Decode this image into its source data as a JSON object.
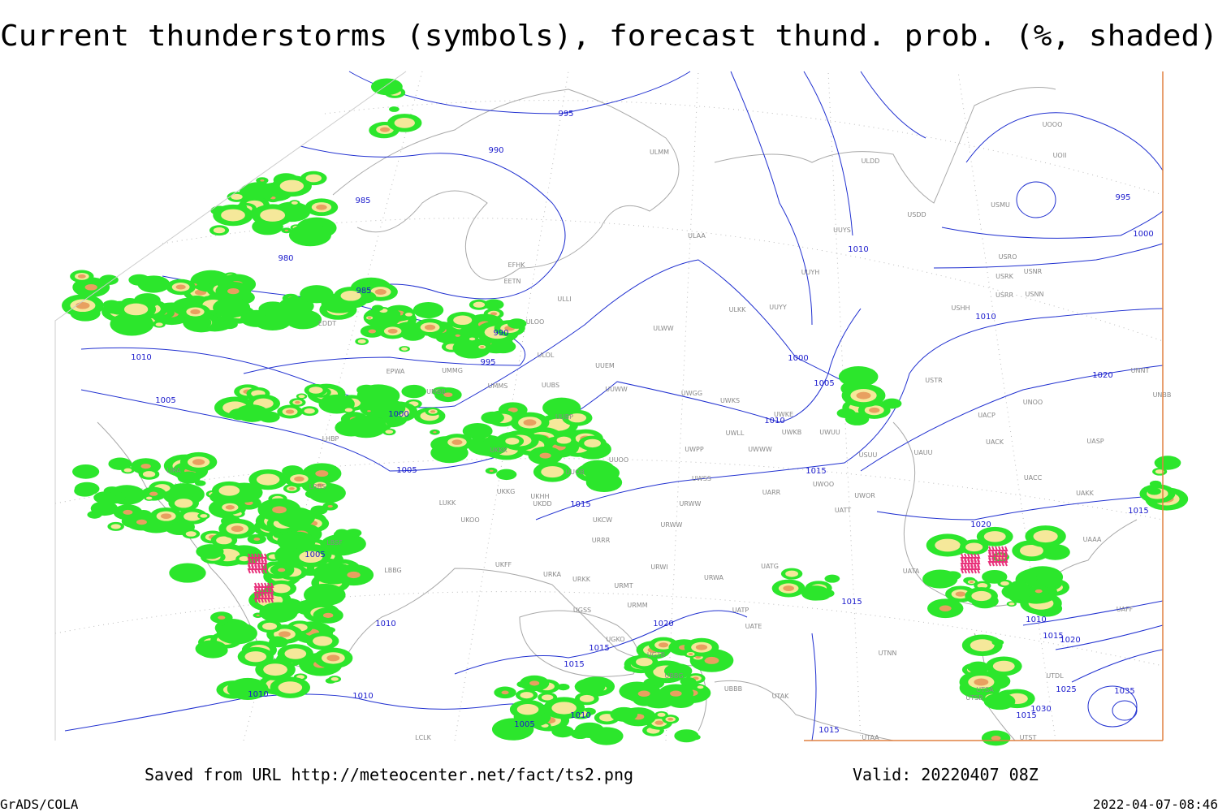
{
  "title": "Current thunderstorms (symbols), forecast thund. prob. (%, shaded)",
  "footer": {
    "source": "Saved from URL http://meteocenter.net/fact/ts2.png",
    "valid": "Valid: 20220407 08Z",
    "software": "GrADS/COLA",
    "timestamp": "2022-04-07-08:46"
  },
  "isobar_labels": [
    "995",
    "990",
    "985",
    "980",
    "985",
    "990",
    "995",
    "1010",
    "1005",
    "1000",
    "1005",
    "1015",
    "1005",
    "1010",
    "1010",
    "1010",
    "1015",
    "1015",
    "1020",
    "1010",
    "1005",
    "1010",
    "1000",
    "1005",
    "1010",
    "1015",
    "1020",
    "1020",
    "1015",
    "1000",
    "995",
    "1010",
    "1015",
    "1010",
    "1015",
    "1020",
    "1025",
    "1030",
    "1035",
    "1015",
    "1015"
  ],
  "stations": [
    "ULMM",
    "ULDD",
    "UOOO",
    "UOII",
    "USMU",
    "USDD",
    "ULAA",
    "UUYS",
    "USRO",
    "USRK",
    "USNR",
    "USRR",
    "USNN",
    "UUYH",
    "UUYY",
    "ULKK",
    "USHH",
    "EFHK",
    "EETN",
    "ULLI",
    "ULOO",
    "ULWW",
    "EDDT",
    "ULOL",
    "UUEM",
    "EPWA",
    "UMMG",
    "UMMS",
    "UUBS",
    "UUWW",
    "UWGG",
    "UWKS",
    "USTR",
    "UNNT",
    "UNBB",
    "UNOO",
    "UMBB",
    "UUBP",
    "UWKE",
    "UWKB",
    "UWUU",
    "UACP",
    "UACK",
    "UASP",
    "LHBP",
    "UKKK",
    "UWLL",
    "UWWW",
    "UWPP",
    "USUU",
    "UAUU",
    "UUOO",
    "LIRA",
    "UUOB",
    "UWSS",
    "UWOO",
    "UACC",
    "UAKK",
    "LRBS",
    "UKKG",
    "UKHH",
    "UAAA",
    "LUKK",
    "UKDD",
    "URWW",
    "UARR",
    "UWOR",
    "UATT",
    "UKOO",
    "UKCW",
    "URWW",
    "LBSF",
    "URRR",
    "UATG",
    "UKFF",
    "LBBG",
    "URWI",
    "UATA",
    "URKA",
    "URKK",
    "URWA",
    "URMT",
    "UGSS",
    "URMM",
    "UATP",
    "UATE",
    "UGKO",
    "UTNN",
    "UGTB",
    "UBBG",
    "UBBB",
    "UTAK",
    "UTSA",
    "UTSB",
    "UTST",
    "UTAA",
    "LCLK",
    "UTDL",
    "UAFF"
  ]
}
